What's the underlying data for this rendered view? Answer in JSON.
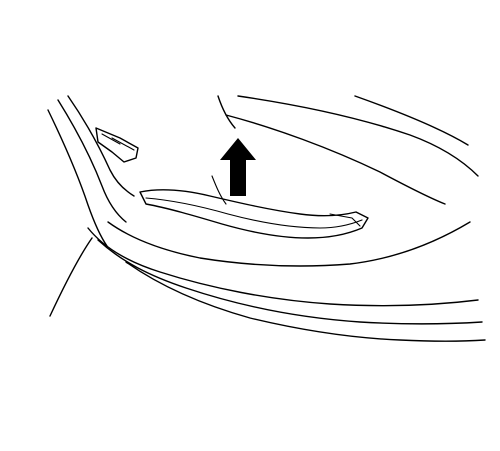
{
  "figure": {
    "subject": "trim-panel-removal",
    "arrow_direction": "up",
    "line_color": "#000000",
    "background_color": "#ffffff"
  }
}
